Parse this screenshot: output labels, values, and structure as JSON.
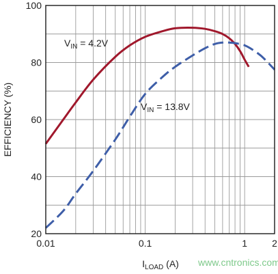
{
  "chart_data": {
    "type": "line",
    "xlabel": {
      "main": "I",
      "sub": "LOAD",
      "rest": " (A)"
    },
    "ylabel": "EFFICIENCY (%)",
    "xscale": "log",
    "xlim": [
      0.01,
      2
    ],
    "ylim": [
      20,
      100
    ],
    "grid": true,
    "xticks": [
      {
        "value": 0.01,
        "label": "0.01"
      },
      {
        "value": 0.1,
        "label": "0.1"
      },
      {
        "value": 1,
        "label": "1"
      },
      {
        "value": 2,
        "label": "2"
      }
    ],
    "yticks": [
      {
        "value": 20,
        "label": "20"
      },
      {
        "value": 40,
        "label": "40"
      },
      {
        "value": 60,
        "label": "60"
      },
      {
        "value": 80,
        "label": "80"
      },
      {
        "value": 100,
        "label": "100"
      }
    ],
    "series": [
      {
        "label": {
          "main": "V",
          "sub": "IN",
          "rest": " = 4.2V"
        },
        "color": "#a0182c",
        "style": "solid",
        "x": [
          0.01,
          0.015,
          0.02,
          0.03,
          0.05,
          0.07,
          0.1,
          0.15,
          0.2,
          0.3,
          0.4,
          0.5,
          0.6,
          0.7,
          0.8,
          0.9,
          1.0,
          1.1
        ],
        "y": [
          51.5,
          60,
          66,
          74,
          82,
          86,
          89,
          91,
          92,
          92.2,
          91.8,
          91,
          90,
          88.5,
          86.5,
          84,
          81,
          78.5
        ]
      },
      {
        "label": {
          "main": "V",
          "sub": "IN",
          "rest": " = 13.8V"
        },
        "color": "#3e5ea8",
        "style": "dashed",
        "x": [
          0.01,
          0.015,
          0.02,
          0.03,
          0.05,
          0.07,
          0.1,
          0.15,
          0.2,
          0.3,
          0.4,
          0.5,
          0.6,
          0.7,
          0.8,
          1.0,
          1.2,
          1.5,
          2.0
        ],
        "y": [
          22,
          28,
          34,
          42,
          53,
          61,
          69,
          75,
          78.5,
          82.5,
          85,
          86.5,
          87,
          87,
          86.8,
          86,
          84.5,
          82,
          77.5
        ]
      }
    ]
  },
  "watermark": "www.cntronics.com"
}
